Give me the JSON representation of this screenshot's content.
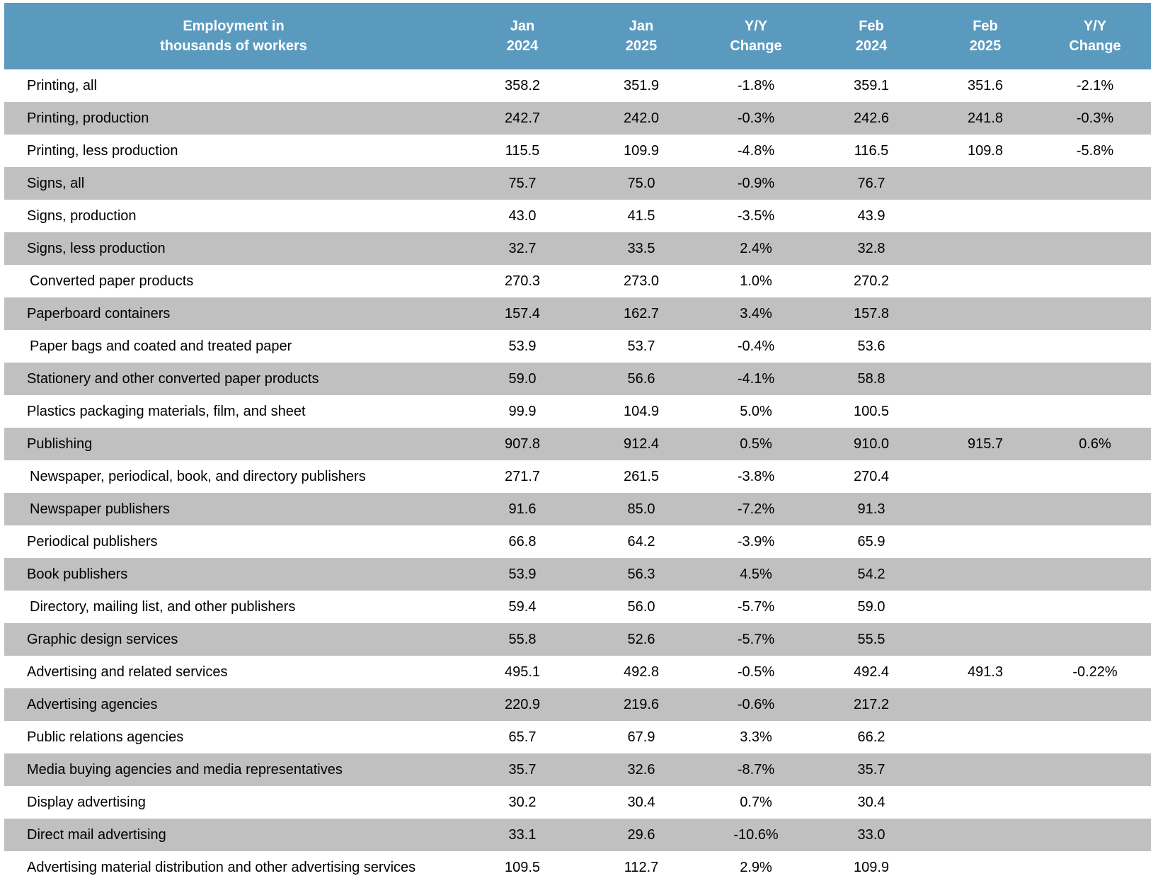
{
  "colors": {
    "header_bg": "#5b9abf",
    "header_text": "#ffffff",
    "band_gray": "#c0c0c0",
    "band_white": "#ffffff"
  },
  "chart_data": {
    "type": "table",
    "headers": [
      "Employment in\nthousands of workers",
      "Jan\n2024",
      "Jan\n2025",
      "Y/Y\nChange",
      "Feb\n2024",
      "Feb\n2025",
      "Y/Y\nChange"
    ],
    "rows": [
      {
        "label": "Printing, all",
        "indent": false,
        "values": [
          "358.2",
          "351.9",
          "-1.8%",
          "359.1",
          "351.6",
          "-2.1%"
        ]
      },
      {
        "label": "Printing, production",
        "indent": false,
        "values": [
          "242.7",
          "242.0",
          "-0.3%",
          "242.6",
          "241.8",
          "-0.3%"
        ]
      },
      {
        "label": "Printing, less production",
        "indent": false,
        "values": [
          "115.5",
          "109.9",
          "-4.8%",
          "116.5",
          "109.8",
          "-5.8%"
        ]
      },
      {
        "label": "Signs, all",
        "indent": false,
        "values": [
          "75.7",
          "75.0",
          "-0.9%",
          "76.7",
          "",
          ""
        ]
      },
      {
        "label": "Signs, production",
        "indent": false,
        "values": [
          "43.0",
          "41.5",
          "-3.5%",
          "43.9",
          "",
          ""
        ]
      },
      {
        "label": "Signs, less production",
        "indent": false,
        "values": [
          "32.7",
          "33.5",
          "2.4%",
          "32.8",
          "",
          ""
        ]
      },
      {
        "label": "Converted paper products",
        "indent": true,
        "values": [
          "270.3",
          "273.0",
          "1.0%",
          "270.2",
          "",
          ""
        ]
      },
      {
        "label": "Paperboard containers",
        "indent": false,
        "values": [
          "157.4",
          "162.7",
          "3.4%",
          "157.8",
          "",
          ""
        ]
      },
      {
        "label": "Paper bags and coated and treated paper",
        "indent": true,
        "values": [
          "53.9",
          "53.7",
          "-0.4%",
          "53.6",
          "",
          ""
        ]
      },
      {
        "label": "Stationery and other converted paper products",
        "indent": false,
        "values": [
          "59.0",
          "56.6",
          "-4.1%",
          "58.8",
          "",
          ""
        ]
      },
      {
        "label": "Plastics packaging materials, film, and sheet",
        "indent": false,
        "values": [
          "99.9",
          "104.9",
          "5.0%",
          "100.5",
          "",
          ""
        ]
      },
      {
        "label": "Publishing",
        "indent": false,
        "values": [
          "907.8",
          "912.4",
          "0.5%",
          "910.0",
          "915.7",
          "0.6%"
        ]
      },
      {
        "label": "Newspaper, periodical, book, and directory publishers",
        "indent": true,
        "values": [
          "271.7",
          "261.5",
          "-3.8%",
          "270.4",
          "",
          ""
        ]
      },
      {
        "label": "Newspaper publishers",
        "indent": true,
        "values": [
          "91.6",
          "85.0",
          "-7.2%",
          "91.3",
          "",
          ""
        ]
      },
      {
        "label": "Periodical publishers",
        "indent": false,
        "values": [
          "66.8",
          "64.2",
          "-3.9%",
          "65.9",
          "",
          ""
        ]
      },
      {
        "label": "Book publishers",
        "indent": false,
        "values": [
          "53.9",
          "56.3",
          "4.5%",
          "54.2",
          "",
          ""
        ]
      },
      {
        "label": "Directory, mailing list, and other publishers",
        "indent": true,
        "values": [
          "59.4",
          "56.0",
          "-5.7%",
          "59.0",
          "",
          ""
        ]
      },
      {
        "label": "Graphic design services",
        "indent": false,
        "values": [
          "55.8",
          "52.6",
          "-5.7%",
          "55.5",
          "",
          ""
        ]
      },
      {
        "label": "Advertising and related services",
        "indent": false,
        "values": [
          "495.1",
          "492.8",
          "-0.5%",
          "492.4",
          "491.3",
          "-0.22%"
        ]
      },
      {
        "label": "Advertising agencies",
        "indent": false,
        "values": [
          "220.9",
          "219.6",
          "-0.6%",
          "217.2",
          "",
          ""
        ]
      },
      {
        "label": "Public relations agencies",
        "indent": false,
        "values": [
          "65.7",
          "67.9",
          "3.3%",
          "66.2",
          "",
          ""
        ]
      },
      {
        "label": "Media buying agencies and media representatives",
        "indent": false,
        "values": [
          "35.7",
          "32.6",
          "-8.7%",
          "35.7",
          "",
          ""
        ]
      },
      {
        "label": "Display advertising",
        "indent": false,
        "values": [
          "30.2",
          "30.4",
          "0.7%",
          "30.4",
          "",
          ""
        ]
      },
      {
        "label": "Direct mail advertising",
        "indent": false,
        "values": [
          "33.1",
          "29.6",
          "-10.6%",
          "33.0",
          "",
          ""
        ]
      },
      {
        "label": "Advertising material distribution and other advertising services",
        "indent": false,
        "values": [
          "109.5",
          "112.7",
          "2.9%",
          "109.9",
          "",
          ""
        ]
      }
    ]
  }
}
